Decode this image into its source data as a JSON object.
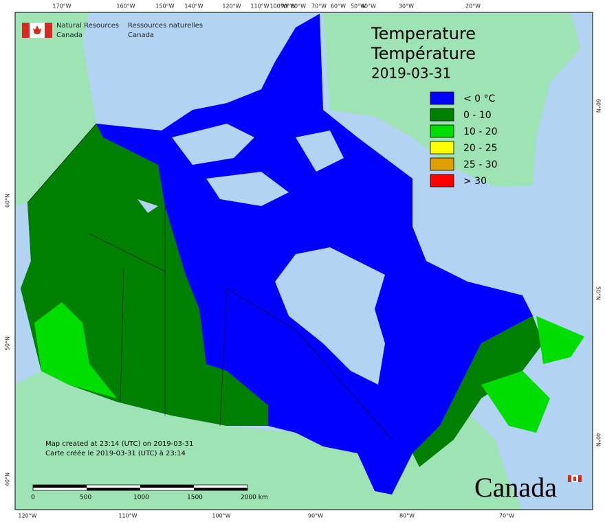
{
  "header": {
    "org_en": [
      "Natural Resources",
      "Canada"
    ],
    "org_fr": [
      "Ressources naturelles",
      "Canada"
    ]
  },
  "title": {
    "en": "Temperature",
    "fr": "Température",
    "date": "2019-03-31"
  },
  "legend": [
    {
      "label": "< 0 °C",
      "color": "#0000ff"
    },
    {
      "label": "0 - 10",
      "color": "#008000"
    },
    {
      "label": "10 - 20",
      "color": "#00dd00"
    },
    {
      "label": "20 - 25",
      "color": "#ffff00"
    },
    {
      "label": "25 - 30",
      "color": "#e0a000"
    },
    {
      "label": "> 30",
      "color": "#ff0000"
    }
  ],
  "graticule": {
    "top": [
      "170°W",
      "160°W",
      "150°W",
      "140°W",
      "120°W",
      "110°W",
      "100°W",
      "90°W",
      "80°W",
      "70°W",
      "60°W",
      "50°W",
      "40°W",
      "30°W",
      "20°W"
    ],
    "bottom": [
      "120°W",
      "110°W",
      "100°W",
      "90°W",
      "80°W",
      "70°W"
    ],
    "left": [
      "60°N",
      "50°N",
      "40°N"
    ],
    "right": [
      "60°N",
      "50°N",
      "40°N"
    ]
  },
  "footer": {
    "created_en": "Map created at 23:14 (UTC) on 2019-03-31",
    "created_fr": "Carte créée le 2019-03-31 (UTC) à 23:14"
  },
  "scale_bar": [
    "0",
    "500",
    "1000",
    "1500",
    "2000 km"
  ],
  "wordmark": "Canada"
}
